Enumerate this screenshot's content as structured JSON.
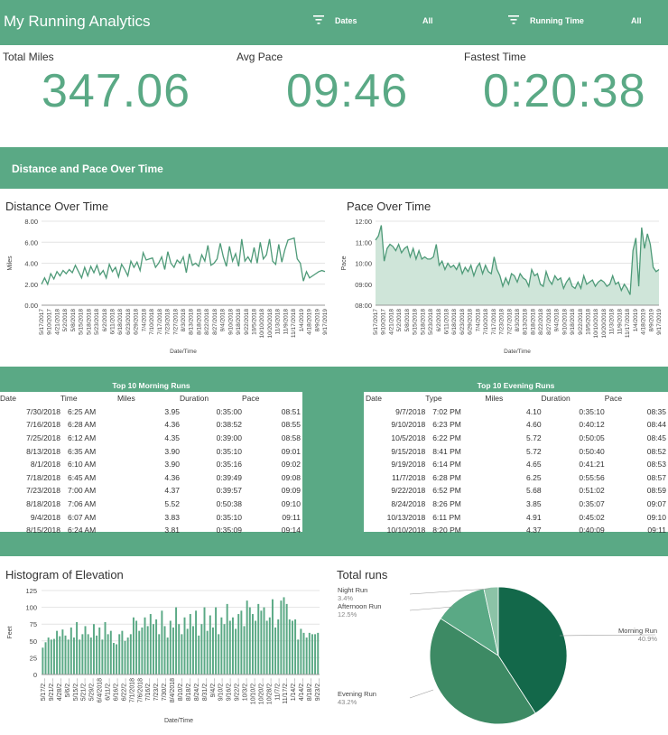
{
  "header": {
    "title": "My Running Analytics",
    "filters": [
      {
        "label": "Dates",
        "value": "All"
      },
      {
        "label": "Running Time",
        "value": "All"
      }
    ]
  },
  "kpis": [
    {
      "label": "Total Miles",
      "value": "347.06"
    },
    {
      "label": "Avg Pace",
      "value": "09:46"
    },
    {
      "label": "Fastest Time",
      "value": "0:20:38"
    }
  ],
  "section_title": "Distance and Pace Over Time",
  "colors": {
    "brand": "#5aa985",
    "line": "#4e9a78",
    "pie_dark": "#13684a",
    "pie_mid": "#3d8a64",
    "pie_light": "#5aa985",
    "pie_lighter": "#8cc3a7"
  },
  "chart_data": [
    {
      "type": "line",
      "title": "Distance Over Time",
      "xlabel": "Date/Time",
      "ylabel": "Miles",
      "ylim": [
        0,
        8
      ],
      "yticks": [
        "0.00",
        "2.00",
        "4.00",
        "6.00",
        "8.00"
      ],
      "xticks": [
        "5/17/2017",
        "9/10/2017",
        "4/21/2018",
        "5/2/2018",
        "5/8/2018",
        "5/15/2018",
        "5/18/2018",
        "5/23/2018",
        "6/2/2018",
        "6/11/2018",
        "6/18/2018",
        "6/23/2018",
        "6/29/2018",
        "7/4/2018",
        "7/10/2018",
        "7/17/2018",
        "7/23/2018",
        "7/27/2018",
        "8/3/2018",
        "8/13/2018",
        "8/18/2018",
        "8/22/2018",
        "8/27/2018",
        "9/4/2018",
        "9/10/2018",
        "9/18/2018",
        "9/22/2018",
        "10/5/2018",
        "10/10/2018",
        "10/20/2018",
        "11/3/2018",
        "11/9/2018",
        "11/17/2018",
        "1/4/2019",
        "4/18/2019",
        "8/9/2019",
        "9/17/2019"
      ],
      "grid": true,
      "series": [
        {
          "values": [
            2.0,
            2.6,
            2.0,
            3.0,
            2.5,
            3.2,
            2.8,
            3.3,
            3.0,
            3.4,
            3.1,
            3.8,
            3.2,
            2.6,
            3.6,
            2.8,
            3.7,
            3.1,
            3.8,
            2.9,
            3.3,
            2.6,
            3.9,
            3.2,
            3.6,
            2.7,
            3.9,
            3.4,
            2.8,
            4.2,
            3.6,
            4.1,
            3.3,
            5.0,
            4.3,
            4.4,
            4.5,
            3.6,
            4.0,
            4.6,
            3.4,
            5.1,
            4.0,
            3.6,
            4.3,
            4.0,
            4.6,
            3.1,
            4.9,
            3.8,
            4.0,
            3.7,
            4.8,
            4.2,
            5.7,
            3.8,
            4.0,
            4.4,
            5.9,
            4.6,
            3.7,
            5.6,
            4.2,
            4.9,
            3.7,
            6.3,
            4.2,
            4.6,
            4.1,
            5.5,
            4.0,
            6.0,
            4.4,
            4.8,
            6.3,
            4.2,
            3.9,
            5.8,
            4.1,
            5.3,
            6.2,
            6.3,
            6.4,
            4.4,
            4.0,
            2.3,
            3.2,
            2.6,
            2.8,
            3.0,
            3.2,
            3.3,
            3.2
          ]
        }
      ]
    },
    {
      "type": "area",
      "title": "Pace Over Time",
      "xlabel": "Date/Time",
      "ylabel": "Pace",
      "ylim": [
        "08:00",
        "12:00"
      ],
      "yticks": [
        "08:00",
        "09:00",
        "10:00",
        "11:00",
        "12:00"
      ],
      "xticks": [
        "5/17/2017",
        "9/10/2017",
        "4/21/2018",
        "5/2/2018",
        "5/8/2018",
        "5/15/2018",
        "5/18/2018",
        "5/23/2018",
        "6/2/2018",
        "6/11/2018",
        "6/18/2018",
        "6/23/2018",
        "6/29/2018",
        "7/4/2018",
        "7/10/2018",
        "7/17/2018",
        "7/23/2018",
        "7/27/2018",
        "8/3/2018",
        "8/13/2018",
        "8/18/2018",
        "8/22/2018",
        "8/27/2018",
        "9/4/2018",
        "9/10/2018",
        "9/18/2018",
        "9/22/2018",
        "10/5/2018",
        "10/10/2018",
        "10/20/2018",
        "11/3/2018",
        "11/9/2018",
        "11/17/2018",
        "1/4/2019",
        "4/18/2019",
        "8/9/2019",
        "9/17/2019"
      ],
      "grid": true,
      "series": [
        {
          "values_minutes": [
            11.1,
            11.3,
            11.8,
            10.1,
            10.7,
            10.9,
            10.8,
            10.6,
            10.9,
            10.5,
            10.7,
            10.8,
            10.3,
            10.7,
            10.2,
            10.6,
            10.2,
            10.3,
            10.2,
            10.2,
            10.3,
            10.9,
            9.9,
            10.1,
            9.7,
            10.0,
            9.8,
            9.9,
            9.7,
            10.0,
            9.5,
            9.8,
            9.6,
            9.9,
            9.4,
            9.8,
            10.0,
            9.5,
            9.9,
            9.6,
            9.5,
            10.3,
            9.7,
            9.4,
            8.9,
            9.3,
            9.0,
            9.5,
            9.4,
            9.1,
            9.5,
            9.3,
            9.2,
            8.9,
            9.7,
            9.4,
            9.5,
            9.0,
            8.9,
            9.6,
            9.2,
            9.0,
            9.4,
            9.2,
            9.3,
            8.8,
            9.1,
            9.3,
            8.9,
            8.8,
            9.1,
            8.8,
            9.4,
            9.0,
            9.1,
            9.2,
            8.9,
            9.1,
            9.2,
            9.1,
            8.9,
            9.0,
            9.4,
            9.0,
            9.1,
            8.7,
            9.0,
            8.8,
            8.5,
            10.6,
            11.2,
            8.9,
            11.7,
            10.7,
            11.4,
            10.9,
            9.8,
            9.6,
            9.7
          ]
        }
      ]
    },
    {
      "type": "bar",
      "title": "Histogram of Elevation",
      "xlabel": "Date/Time",
      "ylabel": "Feet",
      "ylim": [
        0,
        125
      ],
      "yticks": [
        "0",
        "25",
        "50",
        "75",
        "100",
        "125"
      ],
      "xticks": [
        "5/17/2...",
        "9/21/2...",
        "4/28/2...",
        "5/6/2...",
        "5/15/2...",
        "5/21/2...",
        "5/29/2...",
        "6/4/2018",
        "6/11/2...",
        "6/16/2...",
        "6/22/2...",
        "7/1/2018",
        "7/6/2018",
        "7/16/2...",
        "7/23/2...",
        "7/30/2...",
        "8/4/2018",
        "8/10/2...",
        "8/18/2...",
        "8/24/2...",
        "8/31/2...",
        "9/4/2...",
        "9/10/2...",
        "9/16/2...",
        "9/22/2...",
        "10/3/2...",
        "10/10/2...",
        "10/20/2...",
        "10/28/2...",
        "11/7/2...",
        "11/17/2...",
        "1/14/2...",
        "4/14/2...",
        "8/18/2...",
        "9/23/2..."
      ],
      "values": [
        40,
        48,
        55,
        52,
        53,
        65,
        57,
        67,
        58,
        52,
        70,
        55,
        78,
        52,
        60,
        72,
        60,
        55,
        75,
        58,
        70,
        52,
        78,
        60,
        65,
        47,
        45,
        60,
        65,
        50,
        55,
        60,
        85,
        80,
        65,
        70,
        85,
        72,
        90,
        75,
        82,
        60,
        95,
        72,
        55,
        80,
        70,
        100,
        75,
        60,
        85,
        68,
        90,
        72,
        95,
        58,
        75,
        100,
        65,
        88,
        70,
        100,
        60,
        85,
        75,
        105,
        80,
        85,
        68,
        90,
        95,
        72,
        110,
        100,
        90,
        80,
        105,
        95,
        100,
        80,
        85,
        112,
        70,
        82,
        110,
        115,
        105,
        82,
        80,
        82,
        52,
        68,
        62,
        55,
        62,
        60,
        60,
        62
      ]
    },
    {
      "type": "pie",
      "title": "Total runs",
      "slices": [
        {
          "label": "Morning Run",
          "pct_label": "40.9%",
          "value": 40.9
        },
        {
          "label": "Evening Run",
          "pct_label": "43.2%",
          "value": 43.2
        },
        {
          "label": "Afternoon Run",
          "pct_label": "12.5%",
          "value": 12.5
        },
        {
          "label": "Night Run",
          "pct_label": "3.4%",
          "value": 3.4
        }
      ]
    }
  ],
  "morning_table": {
    "title": "Top 10 Morning Runs",
    "columns": [
      "Date",
      "Time",
      "Miles",
      "Duration",
      "Pace"
    ],
    "rows": [
      [
        "7/30/2018",
        "6:25 AM",
        "3.95",
        "0:35:00",
        "08:51"
      ],
      [
        "7/16/2018",
        "6:28 AM",
        "4.36",
        "0:38:52",
        "08:55"
      ],
      [
        "7/25/2018",
        "6:12 AM",
        "4.35",
        "0:39:00",
        "08:58"
      ],
      [
        "8/13/2018",
        "6:35 AM",
        "3.90",
        "0:35:10",
        "09:01"
      ],
      [
        "8/1/2018",
        "6:10 AM",
        "3.90",
        "0:35:16",
        "09:02"
      ],
      [
        "7/18/2018",
        "6:45 AM",
        "4.36",
        "0:39:49",
        "09:08"
      ],
      [
        "7/23/2018",
        "7:00 AM",
        "4.37",
        "0:39:57",
        "09:09"
      ],
      [
        "8/18/2018",
        "7:06 AM",
        "5.52",
        "0:50:38",
        "09:10"
      ],
      [
        "9/4/2018",
        "6:07 AM",
        "3.83",
        "0:35:10",
        "09:11"
      ],
      [
        "8/15/2018",
        "6:24 AM",
        "3.81",
        "0:35:09",
        "09:14"
      ]
    ]
  },
  "evening_table": {
    "title": "Top 10 Evening Runs",
    "columns": [
      "Date",
      "Type",
      "Miles",
      "Duration",
      "Pace"
    ],
    "rows": [
      [
        "9/7/2018",
        "7:02 PM",
        "4.10",
        "0:35:10",
        "08:35"
      ],
      [
        "9/10/2018",
        "6:23 PM",
        "4.60",
        "0:40:12",
        "08:44"
      ],
      [
        "10/5/2018",
        "6:22 PM",
        "5.72",
        "0:50:05",
        "08:45"
      ],
      [
        "9/15/2018",
        "8:41 PM",
        "5.72",
        "0:50:40",
        "08:52"
      ],
      [
        "9/19/2018",
        "6:14 PM",
        "4.65",
        "0:41:21",
        "08:53"
      ],
      [
        "11/7/2018",
        "6:28 PM",
        "6.25",
        "0:55:56",
        "08:57"
      ],
      [
        "9/22/2018",
        "6:52 PM",
        "5.68",
        "0:51:02",
        "08:59"
      ],
      [
        "8/24/2018",
        "8:26 PM",
        "3.85",
        "0:35:07",
        "09:07"
      ],
      [
        "10/13/2018",
        "6:11 PM",
        "4.91",
        "0:45:02",
        "09:10"
      ],
      [
        "10/10/2018",
        "8:20 PM",
        "4.37",
        "0:40:09",
        "09:11"
      ]
    ]
  }
}
